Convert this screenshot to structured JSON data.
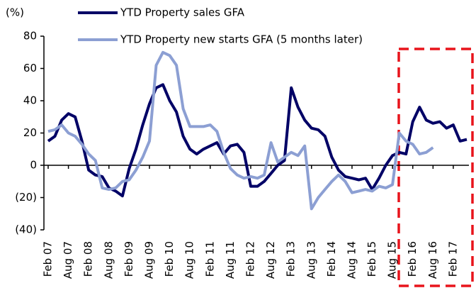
{
  "chart_data": {
    "type": "line",
    "unit_label": "(%)",
    "categories": [
      "Feb 07",
      null,
      null,
      "Aug 07",
      null,
      null,
      "Feb 08",
      null,
      null,
      "Aug 08",
      null,
      null,
      "Feb 09",
      null,
      null,
      "Aug 09",
      null,
      null,
      "Feb 10",
      null,
      null,
      "Aug 10",
      null,
      null,
      "Feb 11",
      null,
      null,
      "Aug 11",
      null,
      null,
      "Feb 12",
      null,
      null,
      "Aug 12",
      null,
      null,
      "Feb 13",
      null,
      null,
      "Aug 13",
      null,
      null,
      "Feb 14",
      null,
      null,
      "Aug 14",
      null,
      null,
      "Feb 15",
      null,
      null,
      "Aug 15",
      null,
      null,
      "Feb 16",
      null,
      null,
      "Aug 16",
      null,
      null,
      "Feb 17",
      null,
      null
    ],
    "series": [
      {
        "name": "YTD Property sales GFA",
        "color": "#000066",
        "values": [
          15,
          18,
          28,
          32,
          30,
          15,
          -3,
          -6,
          -7,
          -14,
          -16,
          -19,
          -2,
          10,
          25,
          38,
          48,
          50,
          40,
          33,
          18,
          10,
          7,
          10,
          12,
          14,
          7,
          12,
          13,
          8,
          -13,
          -13,
          -10,
          -5,
          0,
          3,
          48,
          36,
          28,
          23,
          22,
          18,
          5,
          -3,
          -7,
          -8,
          -9,
          -8,
          -15,
          -8,
          0,
          6,
          8,
          7,
          27,
          36,
          28,
          26,
          27,
          23,
          25,
          15,
          16
        ]
      },
      {
        "name": "YTD Property new starts GFA (5 months later)",
        "color": "#8c9fd3",
        "values": [
          21,
          22,
          25,
          20,
          18,
          13,
          7,
          3,
          -14,
          -15,
          -14,
          -10,
          -9,
          -3,
          5,
          15,
          62,
          70,
          68,
          62,
          35,
          24,
          24,
          24,
          25,
          21,
          8,
          -2,
          -6,
          -8,
          -7,
          -8,
          -6,
          14,
          2,
          5,
          8,
          6,
          12,
          -27,
          -20,
          -15,
          -10,
          -6,
          -10,
          -17,
          -16,
          -15,
          -16,
          -13,
          -14,
          -12,
          20,
          15,
          13,
          7,
          8,
          11,
          null,
          null,
          null,
          null,
          null
        ]
      }
    ],
    "ylim": [
      -40,
      80
    ],
    "yticks": [
      {
        "value": -40,
        "label": "(40)"
      },
      {
        "value": -20,
        "label": "(20)"
      },
      0,
      20,
      40,
      60,
      80
    ]
  }
}
